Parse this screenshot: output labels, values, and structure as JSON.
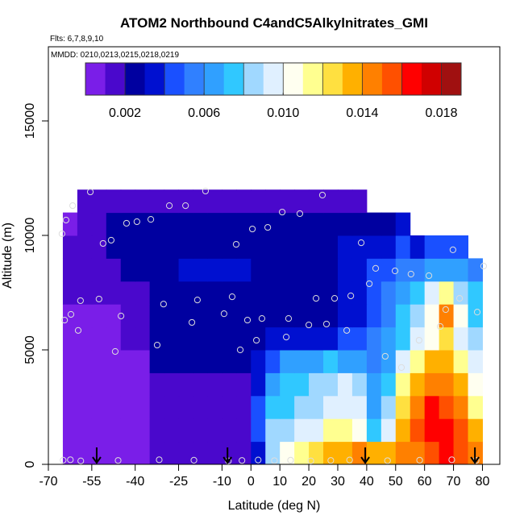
{
  "chart_data": {
    "type": "curtain",
    "title": "ATOM2 Northbound C4andC5Alkylnitrates_GMI",
    "subtitle": "Flts: 6,7,8,9,10",
    "annotation": "MMDD: 0210,0213,0215,0218,0219",
    "xlabel": "Latitude (deg N)",
    "ylabel": "Altitude (m)",
    "xlim": [
      -70,
      86
    ],
    "ylim": [
      0,
      18240
    ],
    "xticks": [
      -70,
      -55,
      -40,
      -25,
      -10,
      0,
      10,
      20,
      30,
      40,
      50,
      60,
      70,
      80
    ],
    "yticks": [
      0,
      5000,
      10000,
      15000
    ],
    "lat_edges": [
      -65,
      -60,
      -55,
      -50,
      -45,
      -40,
      -35,
      -30,
      -25,
      -20,
      -15,
      -10,
      -5,
      0,
      5,
      10,
      15,
      20,
      25,
      30,
      35,
      40,
      45,
      50,
      55,
      60,
      65,
      70,
      75,
      80
    ],
    "alt_edges": [
      0,
      1000,
      2000,
      3000,
      4000,
      5000,
      6000,
      7000,
      8000,
      9000,
      10000,
      11000,
      12000
    ],
    "z": [
      [
        0.0007,
        0.0007,
        0.0007,
        0.0007,
        0.0007,
        0.0007,
        0.001,
        0.001,
        0.001,
        0.001,
        0.001,
        0.001,
        0.001,
        0.003,
        0.008,
        0.01,
        0.0115,
        0.012,
        0.013,
        0.0135,
        0.014,
        0.0135,
        0.013,
        0.014,
        0.0145,
        0.015,
        0.016,
        0.0155,
        0.014
      ],
      [
        0.0007,
        0.0007,
        0.0007,
        0.0007,
        0.0007,
        0.0007,
        0.0012,
        0.0012,
        0.0012,
        0.0012,
        0.0012,
        0.0012,
        0.0012,
        0.004,
        0.008,
        0.0085,
        0.009,
        0.0095,
        0.011,
        0.0115,
        0.01,
        0.007,
        0.009,
        0.013,
        0.015,
        0.0165,
        0.0165,
        0.015,
        0.013
      ],
      [
        0.0008,
        0.0008,
        0.0008,
        0.0008,
        0.0008,
        0.0008,
        0.0015,
        0.0015,
        0.0015,
        0.0015,
        0.0015,
        0.0015,
        0.0015,
        0.004,
        0.007,
        0.0075,
        0.008,
        0.0085,
        0.0095,
        0.0095,
        0.009,
        0.0065,
        0.008,
        0.012,
        0.014,
        0.016,
        0.0155,
        0.014,
        0.011
      ],
      [
        0.0008,
        0.0008,
        0.0008,
        0.0008,
        0.0008,
        0.0008,
        0.0018,
        0.0018,
        0.0018,
        0.0018,
        0.0018,
        0.0018,
        0.0018,
        0.0035,
        0.0065,
        0.007,
        0.0075,
        0.008,
        0.0085,
        0.009,
        0.0085,
        0.0065,
        0.0075,
        0.011,
        0.013,
        0.0145,
        0.0145,
        0.013,
        0.01
      ],
      [
        0.0009,
        0.0009,
        0.0009,
        0.0009,
        0.0009,
        0.0009,
        0.002,
        0.002,
        0.002,
        0.002,
        0.002,
        0.002,
        0.002,
        0.003,
        0.0045,
        0.006,
        0.0065,
        0.0065,
        0.007,
        0.0065,
        0.006,
        0.0055,
        0.0065,
        0.009,
        0.0115,
        0.013,
        0.0135,
        0.011,
        0.009
      ],
      [
        0.0009,
        0.0009,
        0.0009,
        0.0009,
        0.0015,
        0.0015,
        0.0025,
        0.0025,
        0.0025,
        0.0025,
        0.0025,
        0.0025,
        0.0025,
        0.0025,
        0.003,
        0.003,
        0.003,
        0.0035,
        0.0035,
        0.004,
        0.0045,
        0.005,
        0.006,
        0.0075,
        0.009,
        0.0105,
        0.0125,
        0.0095,
        0.008
      ],
      [
        0.0009,
        0.0009,
        0.0009,
        0.0009,
        0.0015,
        0.0015,
        0.0028,
        0.0028,
        0.0028,
        0.0028,
        0.0028,
        0.0028,
        0.0028,
        0.0025,
        0.0025,
        0.0025,
        0.0025,
        0.0025,
        0.0025,
        0.003,
        0.0035,
        0.0045,
        0.0055,
        0.007,
        0.0085,
        0.0105,
        0.014,
        0.0105,
        0.0075
      ],
      [
        0.001,
        0.001,
        0.001,
        0.001,
        0.0018,
        0.0018,
        0.0025,
        0.0025,
        0.0025,
        0.0025,
        0.0025,
        0.0025,
        0.0025,
        0.0025,
        0.0025,
        0.0025,
        0.0025,
        0.0025,
        0.0025,
        0.003,
        0.0035,
        0.004,
        0.0055,
        0.0065,
        0.0075,
        0.009,
        0.0115,
        0.0085,
        0.007
      ],
      [
        0.001,
        0.001,
        0.001,
        0.001,
        0.0025,
        0.0025,
        0.0025,
        0.0025,
        0.003,
        0.003,
        0.003,
        0.003,
        0.003,
        0.0028,
        0.0028,
        0.0028,
        0.0028,
        0.0028,
        0.0028,
        0.003,
        0.0035,
        0.004,
        0.0045,
        0.005,
        0.0055,
        0.006,
        0.0065,
        0.006,
        0.0055
      ],
      [
        0.001,
        0.001,
        0.001,
        0.0025,
        0.0025,
        0.0025,
        0.0025,
        0.0025,
        0.0028,
        0.0028,
        0.0028,
        0.0028,
        0.0028,
        0.0025,
        0.0025,
        0.0025,
        0.0025,
        0.0025,
        0.0025,
        0.003,
        0.003,
        0.003,
        0.0035,
        0.004,
        0.0035,
        0.004,
        0.0042,
        0.004,
        null
      ],
      [
        0.0009,
        0.0012,
        0.0012,
        0.002,
        0.002,
        0.002,
        0.002,
        0.002,
        0.0025,
        0.0025,
        0.0025,
        0.0025,
        0.0025,
        0.0022,
        0.0022,
        0.0022,
        0.0022,
        0.0022,
        0.0022,
        0.0025,
        0.0025,
        0.0025,
        0.0025,
        0.003,
        null,
        null,
        null,
        null,
        null
      ],
      [
        null,
        0.0012,
        0.0012,
        0.0012,
        0.0015,
        0.0015,
        0.0015,
        0.0015,
        0.0015,
        0.0018,
        0.0018,
        0.0018,
        0.0018,
        0.0018,
        0.0018,
        0.0018,
        0.0018,
        0.0018,
        0.0018,
        0.0015,
        0.0015,
        null,
        null,
        null,
        null,
        null,
        null,
        null,
        null
      ]
    ],
    "colorbar": {
      "limits": [
        0,
        0.019
      ],
      "colors": [
        "#7a1ee8",
        "#4a08cc",
        "#0000a0",
        "#0010d0",
        "#1a50ff",
        "#3080ff",
        "#30a0ff",
        "#30c8ff",
        "#a0d8ff",
        "#e0f0ff",
        "#fffff0",
        "#ffff90",
        "#ffe040",
        "#ffb000",
        "#ff8000",
        "#ff5000",
        "#ff0000",
        "#d00000",
        "#a01010"
      ],
      "ticks": [
        0.002,
        0.006,
        {
          "value": 0.01,
          "label": "0.010"
        },
        0.014,
        0.018
      ]
    },
    "samples": {
      "lat": [
        -65.3,
        -55.5,
        -61.6,
        -63.9,
        -64.4,
        -62.2,
        -59.7,
        -58.9,
        -52.5,
        -51.1,
        -48.3,
        -46.9,
        -44.9,
        -43,
        -39.4,
        -34.6,
        -28.2,
        -22.6,
        -30.2,
        -32.4,
        -20.4,
        -18.5,
        -15.7,
        -9.3,
        -5.1,
        -6.5,
        -3.7,
        -1.2,
        0.5,
        1.9,
        3.8,
        5.8,
        10.8,
        12.2,
        13,
        16.9,
        20,
        22.5,
        24.7,
        26.1,
        28.9,
        33.1,
        34.5,
        38.1,
        40.9,
        43.1,
        46.4,
        49.8,
        52,
        55.3,
        58.1,
        61.5,
        65.4,
        67.3,
        69.8,
        72.1,
        78.2,
        80.4,
        -64.9,
        -62.4,
        -58.8,
        -45.9,
        -31.7,
        -19.7,
        -7.8,
        -3.1,
        2.5,
        8.1,
        13.7,
        20.7,
        27.6,
        34.1,
        47.2,
        58.3,
        69.4,
        77.8
      ],
      "alt": [
        10070,
        11900,
        11300,
        10670,
        6300,
        6550,
        5850,
        7150,
        7220,
        9650,
        9790,
        4930,
        6480,
        10530,
        10600,
        10700,
        11300,
        11300,
        7000,
        5210,
        6200,
        7180,
        11940,
        6580,
        9610,
        7320,
        5000,
        6300,
        10280,
        5420,
        6370,
        10350,
        11020,
        5560,
        6370,
        10950,
        6090,
        7250,
        11760,
        6130,
        7250,
        5850,
        7360,
        9680,
        7890,
        8560,
        4720,
        8450,
        4230,
        8310,
        5420,
        8240,
        6020,
        6760,
        9370,
        7250,
        6650,
        8660,
        180,
        200,
        150,
        170,
        200,
        180,
        150,
        170,
        190,
        160,
        180,
        150,
        170,
        190,
        160,
        180,
        200,
        170
      ]
    },
    "arrows": [
      -53.3,
      -8.1,
      39.5,
      77.4
    ]
  }
}
